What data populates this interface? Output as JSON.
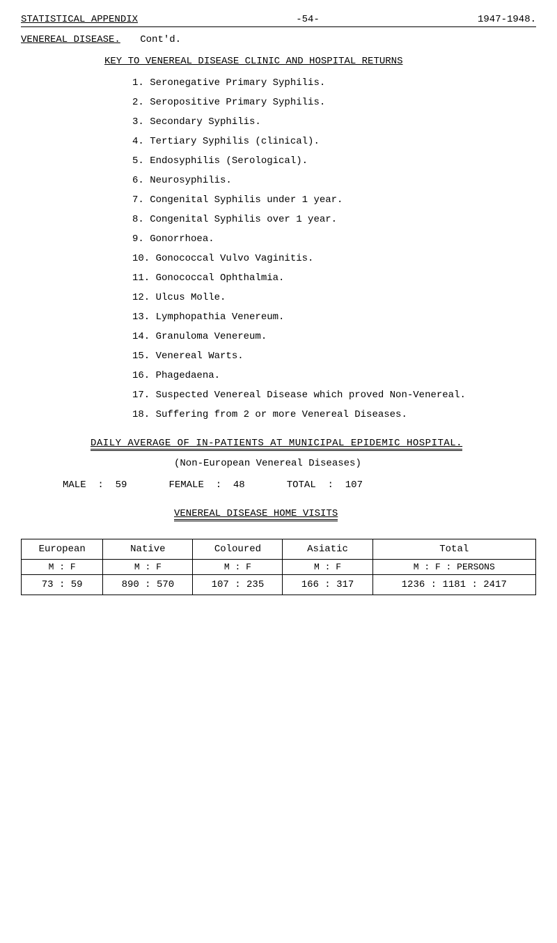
{
  "header": {
    "left": "STATISTICAL APPENDIX",
    "center": "-54-",
    "right": "1947-1948."
  },
  "subheading": {
    "label": "VENEREAL DISEASE.",
    "value": "Cont'd."
  },
  "keyHeading": "KEY TO VENEREAL DISEASE CLINIC AND HOSPITAL RETURNS",
  "items": [
    "1. Seronegative Primary Syphilis.",
    "2. Seropositive Primary Syphilis.",
    "3. Secondary Syphilis.",
    "4. Tertiary Syphilis (clinical).",
    "5. Endosyphilis (Serological).",
    "6. Neurosyphilis.",
    "7. Congenital Syphilis under 1 year.",
    "8. Congenital Syphilis over 1 year.",
    "9. Gonorrhoea.",
    "10. Gonococcal Vulvo Vaginitis.",
    "11. Gonococcal Ophthalmia.",
    "12. Ulcus Molle.",
    "13. Lymphopathia Venereum.",
    "14. Granuloma Venereum.",
    "15. Venereal Warts.",
    "16. Phagedaena.",
    "17. Suspected Venereal Disease which proved Non-Venereal.",
    "18. Suffering from 2 or more Venereal Diseases."
  ],
  "dailyHeading": "DAILY AVERAGE OF IN-PATIENTS AT MUNICIPAL EPIDEMIC HOSPITAL.",
  "subLine": "(Non-European Venereal Diseases)",
  "stats": {
    "male": {
      "label": "MALE",
      "sep": ":",
      "value": "59"
    },
    "female": {
      "label": "FEMALE",
      "sep": ":",
      "value": "48"
    },
    "total": {
      "label": "TOTAL",
      "sep": ":",
      "value": "107"
    }
  },
  "visitsHeading": "VENEREAL DISEASE HOME VISITS",
  "table": {
    "headers": [
      "European",
      "Native",
      "Coloured",
      "Asiatic",
      "Total"
    ],
    "subheaders": [
      "M : F",
      "M : F",
      "M : F",
      "M : F",
      "M : F : PERSONS"
    ],
    "row": [
      "73 : 59",
      "890 : 570",
      "107 : 235",
      "166 : 317",
      "1236 : 1181 : 2417"
    ]
  }
}
